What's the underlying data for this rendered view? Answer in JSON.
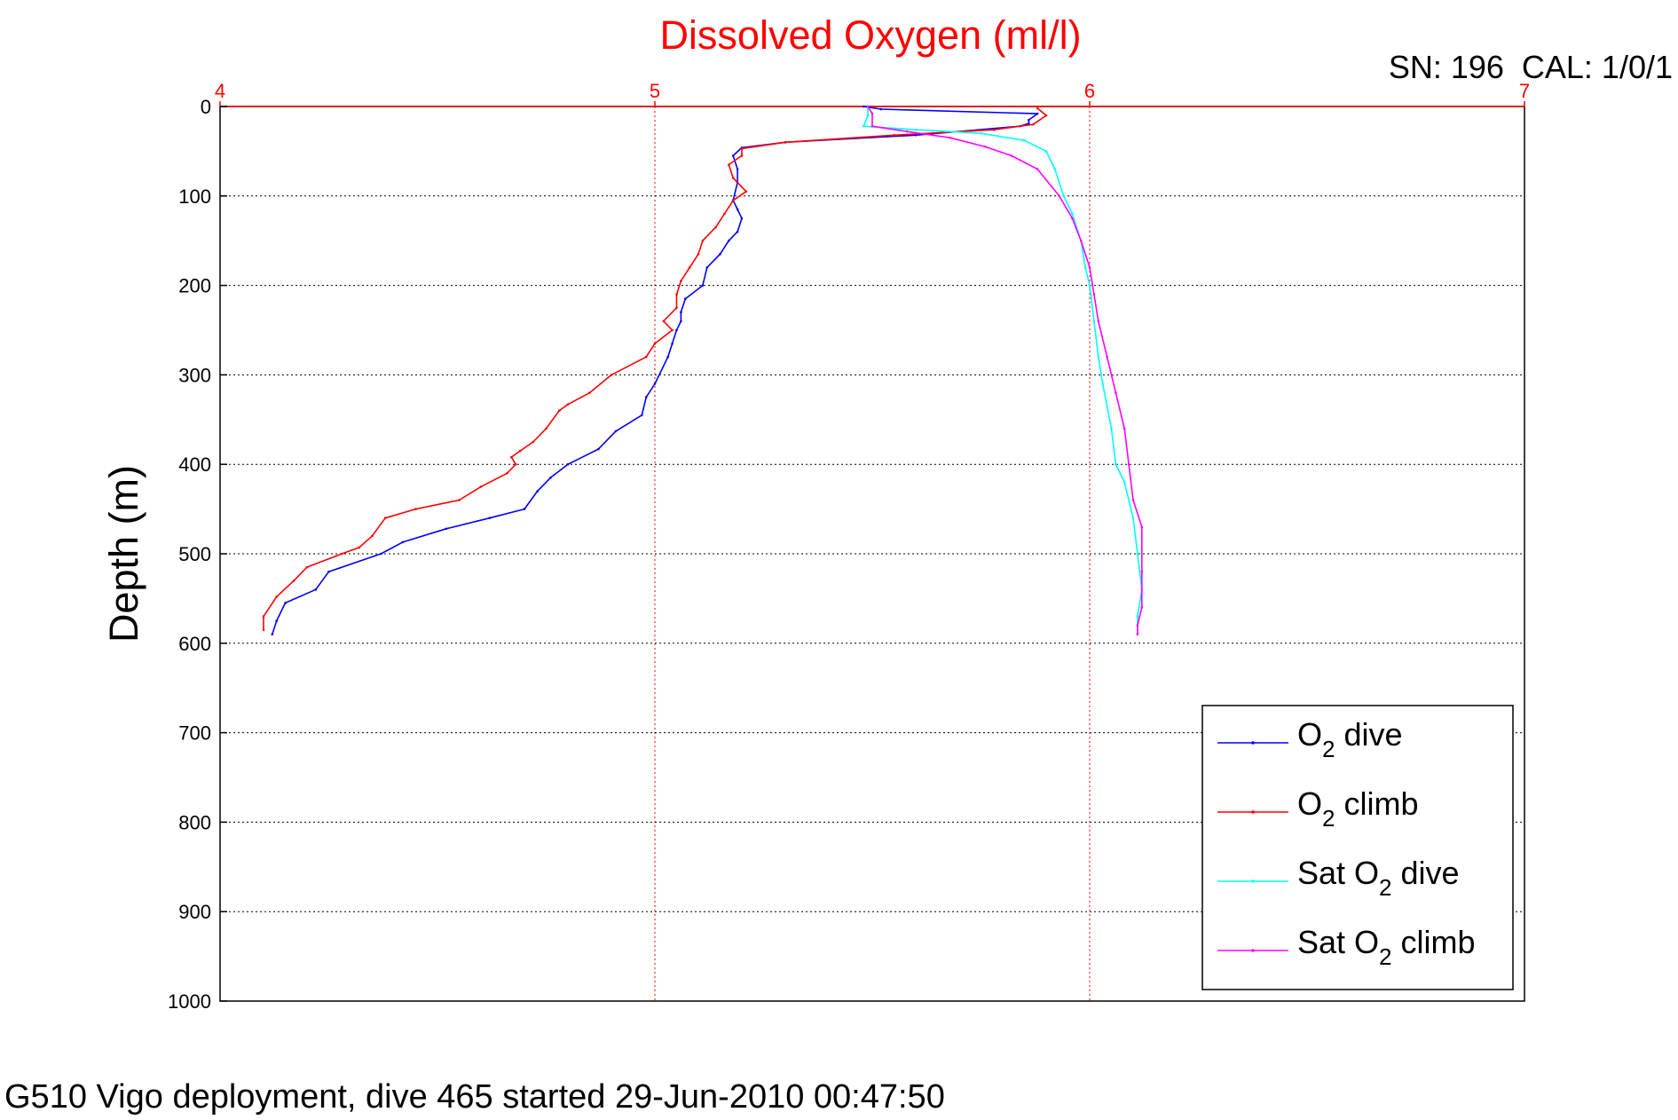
{
  "chart_data": {
    "type": "line",
    "title": "Dissolved Oxygen (ml/l)",
    "ylabel": "Depth (m)",
    "annotation": "SN: 196  CAL: 1/0/1",
    "footer": "G510 Vigo deployment, dive 465 started 29-Jun-2010 00:47:50",
    "xlim": [
      4,
      7
    ],
    "ylim": [
      0,
      1000
    ],
    "y_reversed": true,
    "x_axis_position": "top",
    "xticks": [
      "4",
      "5",
      "6",
      "7"
    ],
    "yticks": [
      "0",
      "100",
      "200",
      "300",
      "400",
      "500",
      "600",
      "700",
      "800",
      "900",
      "1000"
    ],
    "grid": true,
    "legend_position": "bottom-right",
    "colors": {
      "title": "#ff0000",
      "x_axis": "#ff0000",
      "grid_x": "#ff0000",
      "grid_y": "#000000"
    },
    "series": [
      {
        "name": "O2 dive",
        "legend": {
          "main": "O",
          "sub": "2",
          "suffix": " dive"
        },
        "color": "#0000ff",
        "points": [
          [
            5.48,
            0
          ],
          [
            5.52,
            3
          ],
          [
            5.88,
            8
          ],
          [
            5.86,
            15
          ],
          [
            5.86,
            19
          ],
          [
            5.84,
            22
          ],
          [
            5.6,
            32
          ],
          [
            5.3,
            40
          ],
          [
            5.2,
            46
          ],
          [
            5.18,
            55
          ],
          [
            5.19,
            70
          ],
          [
            5.19,
            85
          ],
          [
            5.18,
            105
          ],
          [
            5.19,
            115
          ],
          [
            5.2,
            125
          ],
          [
            5.19,
            140
          ],
          [
            5.17,
            150
          ],
          [
            5.15,
            165
          ],
          [
            5.12,
            180
          ],
          [
            5.11,
            200
          ],
          [
            5.07,
            215
          ],
          [
            5.06,
            230
          ],
          [
            5.06,
            240
          ],
          [
            5.05,
            250
          ],
          [
            5.04,
            265
          ],
          [
            5.03,
            280
          ],
          [
            5.0,
            310
          ],
          [
            4.98,
            325
          ],
          [
            4.97,
            345
          ],
          [
            4.91,
            363
          ],
          [
            4.87,
            383
          ],
          [
            4.8,
            400
          ],
          [
            4.76,
            415
          ],
          [
            4.73,
            430
          ],
          [
            4.7,
            450
          ],
          [
            4.62,
            460
          ],
          [
            4.52,
            472
          ],
          [
            4.42,
            487
          ],
          [
            4.37,
            500
          ],
          [
            4.25,
            520
          ],
          [
            4.22,
            540
          ],
          [
            4.15,
            555
          ],
          [
            4.13,
            575
          ],
          [
            4.12,
            590
          ]
        ]
      },
      {
        "name": "O2 climb",
        "legend": {
          "main": "O",
          "sub": "2",
          "suffix": " climb"
        },
        "color": "#ff0000",
        "points": [
          [
            5.88,
            2
          ],
          [
            5.9,
            10
          ],
          [
            5.87,
            20
          ],
          [
            5.78,
            26
          ],
          [
            5.55,
            32
          ],
          [
            5.3,
            40
          ],
          [
            5.2,
            47
          ],
          [
            5.2,
            55
          ],
          [
            5.17,
            65
          ],
          [
            5.18,
            80
          ],
          [
            5.21,
            95
          ],
          [
            5.18,
            105
          ],
          [
            5.16,
            120
          ],
          [
            5.14,
            135
          ],
          [
            5.11,
            150
          ],
          [
            5.1,
            165
          ],
          [
            5.08,
            180
          ],
          [
            5.06,
            195
          ],
          [
            5.05,
            210
          ],
          [
            5.05,
            225
          ],
          [
            5.02,
            240
          ],
          [
            5.04,
            250
          ],
          [
            5.0,
            265
          ],
          [
            4.98,
            280
          ],
          [
            4.9,
            300
          ],
          [
            4.85,
            320
          ],
          [
            4.8,
            333
          ],
          [
            4.78,
            340
          ],
          [
            4.75,
            360
          ],
          [
            4.72,
            375
          ],
          [
            4.69,
            385
          ],
          [
            4.67,
            392
          ],
          [
            4.68,
            400
          ],
          [
            4.66,
            410
          ],
          [
            4.6,
            425
          ],
          [
            4.55,
            440
          ],
          [
            4.45,
            450
          ],
          [
            4.38,
            460
          ],
          [
            4.35,
            480
          ],
          [
            4.32,
            493
          ],
          [
            4.28,
            500
          ],
          [
            4.2,
            515
          ],
          [
            4.17,
            530
          ],
          [
            4.13,
            548
          ],
          [
            4.1,
            570
          ],
          [
            4.1,
            585
          ]
        ]
      },
      {
        "name": "Sat O2 dive",
        "legend": {
          "main": "Sat O",
          "sub": "2",
          "suffix": " dive"
        },
        "color": "#00ffff",
        "points": [
          [
            5.49,
            0
          ],
          [
            5.49,
            10
          ],
          [
            5.48,
            22
          ],
          [
            5.6,
            26
          ],
          [
            5.75,
            30
          ],
          [
            5.85,
            38
          ],
          [
            5.9,
            50
          ],
          [
            5.92,
            70
          ],
          [
            5.94,
            100
          ],
          [
            5.96,
            120
          ],
          [
            5.98,
            150
          ],
          [
            5.99,
            180
          ],
          [
            6.0,
            200
          ],
          [
            6.01,
            240
          ],
          [
            6.02,
            280
          ],
          [
            6.03,
            310
          ],
          [
            6.05,
            360
          ],
          [
            6.06,
            400
          ],
          [
            6.08,
            420
          ],
          [
            6.1,
            460
          ],
          [
            6.11,
            500
          ],
          [
            6.12,
            540
          ],
          [
            6.11,
            570
          ],
          [
            6.11,
            590
          ]
        ]
      },
      {
        "name": "Sat O2 climb",
        "legend": {
          "main": "Sat O",
          "sub": "2",
          "suffix": " climb"
        },
        "color": "#ff00ff",
        "points": [
          [
            5.49,
            0
          ],
          [
            5.5,
            8
          ],
          [
            5.5,
            22
          ],
          [
            5.58,
            28
          ],
          [
            5.68,
            35
          ],
          [
            5.76,
            45
          ],
          [
            5.82,
            55
          ],
          [
            5.88,
            70
          ],
          [
            5.93,
            100
          ],
          [
            5.96,
            125
          ],
          [
            5.98,
            150
          ],
          [
            6.0,
            180
          ],
          [
            6.01,
            210
          ],
          [
            6.02,
            240
          ],
          [
            6.04,
            280
          ],
          [
            6.06,
            320
          ],
          [
            6.08,
            360
          ],
          [
            6.09,
            400
          ],
          [
            6.1,
            440
          ],
          [
            6.12,
            470
          ],
          [
            6.12,
            520
          ],
          [
            6.12,
            560
          ],
          [
            6.11,
            580
          ],
          [
            6.11,
            590
          ]
        ]
      }
    ]
  }
}
